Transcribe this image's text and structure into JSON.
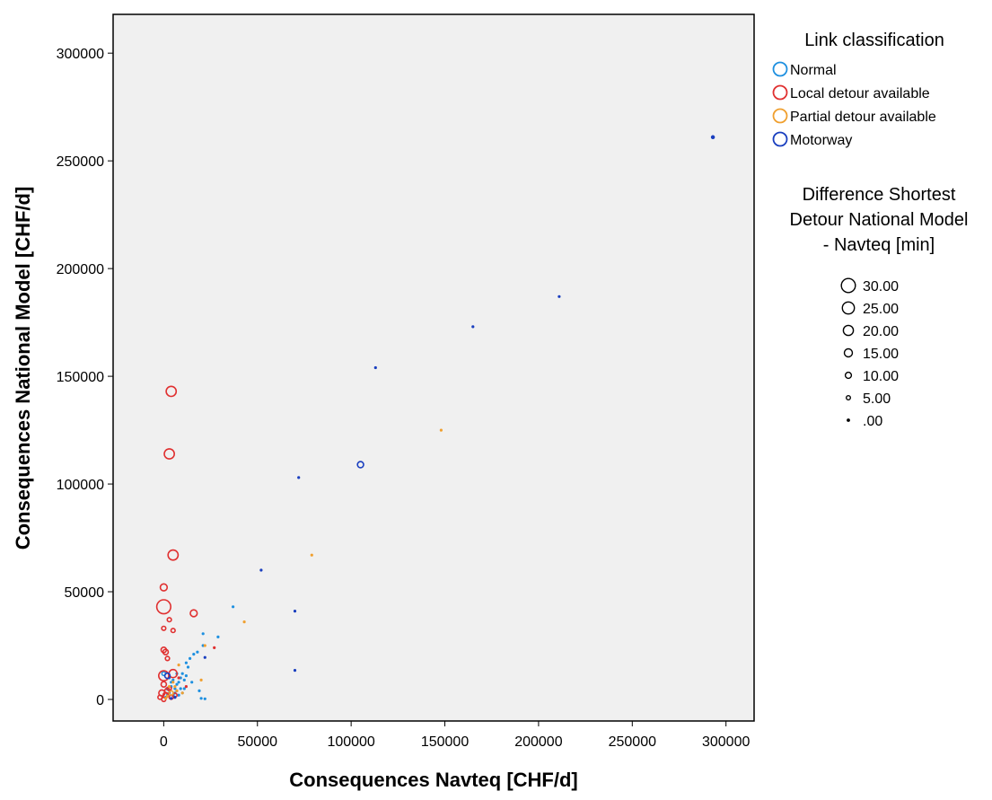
{
  "chart_data": {
    "type": "scatter",
    "xlabel": "Consequences Navteq [CHF/d]",
    "ylabel": "Consequences National Model [CHF/d]",
    "xlim": [
      -27000,
      315000
    ],
    "ylim": [
      -10000,
      318000
    ],
    "x_ticks": [
      "0",
      "50000",
      "100000",
      "150000",
      "200000",
      "250000",
      "300000"
    ],
    "y_ticks": [
      "0",
      "50000",
      "100000",
      "150000",
      "200000",
      "250000",
      "300000"
    ],
    "x_tick_values": [
      0,
      50000,
      100000,
      150000,
      200000,
      250000,
      300000
    ],
    "y_tick_values": [
      0,
      50000,
      100000,
      150000,
      200000,
      250000,
      300000
    ],
    "grid": false,
    "plot_background": "#f0f0f0",
    "legend_position": "right",
    "color_legend_title": "Link classification",
    "size_legend_title": [
      "Difference Shortest",
      "Detour National Model",
      "- Navteq [min]"
    ],
    "size_legend_entries": [
      {
        "label": "30.00",
        "value": 30
      },
      {
        "label": "25.00",
        "value": 25
      },
      {
        "label": "20.00",
        "value": 20
      },
      {
        "label": "15.00",
        "value": 15
      },
      {
        "label": "10.00",
        "value": 10
      },
      {
        "label": "5.00",
        "value": 5
      },
      {
        "label": ".00",
        "value": 0
      }
    ],
    "series": [
      {
        "name": "Normal",
        "color": "#1e90e0",
        "points": [
          [
            37000,
            43000,
            0
          ],
          [
            21000,
            30500,
            0
          ],
          [
            29000,
            29000,
            0
          ],
          [
            21000,
            25000,
            0
          ],
          [
            18000,
            22000,
            0
          ],
          [
            14000,
            19000,
            0
          ],
          [
            16000,
            21000,
            0
          ],
          [
            12000,
            17000,
            0
          ],
          [
            13000,
            15000,
            0
          ],
          [
            10000,
            12000,
            0
          ],
          [
            9000,
            10000,
            0
          ],
          [
            11000,
            9000,
            0
          ],
          [
            12000,
            11000,
            0
          ],
          [
            8000,
            8000,
            0
          ],
          [
            7000,
            7000,
            0
          ],
          [
            6000,
            5000,
            0
          ],
          [
            5000,
            9000,
            0
          ],
          [
            4000,
            6000,
            0
          ],
          [
            9000,
            5000,
            0
          ],
          [
            10000,
            3000,
            0
          ],
          [
            8000,
            2000,
            0
          ],
          [
            6000,
            1000,
            0
          ],
          [
            3000,
            3000,
            0
          ],
          [
            2000,
            2000,
            0
          ],
          [
            1000,
            1000,
            0
          ],
          [
            19000,
            4000,
            0
          ],
          [
            20000,
            500,
            0
          ],
          [
            22000,
            300,
            0
          ],
          [
            15000,
            8000,
            0
          ],
          [
            7000,
            12000,
            0
          ],
          [
            0,
            12000,
            4
          ],
          [
            2000,
            5000,
            2
          ],
          [
            5000,
            2000,
            1
          ],
          [
            4000,
            8000,
            0
          ],
          [
            6000,
            3000,
            0
          ],
          [
            7000,
            4000,
            0
          ],
          [
            11000,
            5000,
            0
          ],
          [
            3000,
            10000,
            0
          ]
        ]
      },
      {
        "name": "Local detour available",
        "color": "#e03030",
        "points": [
          [
            4000,
            143000,
            20
          ],
          [
            3000,
            114000,
            20
          ],
          [
            5000,
            67000,
            20
          ],
          [
            0,
            43000,
            30
          ],
          [
            0,
            52000,
            12
          ],
          [
            16000,
            40000,
            12
          ],
          [
            3000,
            37000,
            5
          ],
          [
            0,
            33000,
            5
          ],
          [
            5000,
            32000,
            5
          ],
          [
            0,
            23000,
            8
          ],
          [
            1000,
            22000,
            8
          ],
          [
            2000,
            19000,
            5
          ],
          [
            0,
            11000,
            20
          ],
          [
            5000,
            12000,
            15
          ],
          [
            0,
            7000,
            8
          ],
          [
            -1000,
            3000,
            10
          ],
          [
            1000,
            2000,
            8
          ],
          [
            2000,
            4000,
            8
          ],
          [
            3000,
            5000,
            5
          ],
          [
            4000,
            1000,
            5
          ],
          [
            -2000,
            1000,
            5
          ],
          [
            8000,
            10000,
            0
          ],
          [
            12000,
            6000,
            0
          ],
          [
            27000,
            24000,
            0
          ],
          [
            6000,
            2000,
            5
          ],
          [
            0,
            0,
            5
          ]
        ]
      },
      {
        "name": "Partial detour available",
        "color": "#f0a030",
        "points": [
          [
            148000,
            125000,
            0
          ],
          [
            79000,
            67000,
            0
          ],
          [
            43000,
            36000,
            0
          ],
          [
            22000,
            25000,
            0
          ],
          [
            20000,
            9000,
            0
          ],
          [
            8000,
            16000,
            0
          ],
          [
            5000,
            8000,
            0
          ],
          [
            3000,
            6000,
            0
          ],
          [
            7000,
            4000,
            0
          ],
          [
            6000,
            6000,
            0
          ],
          [
            4000,
            3000,
            5
          ],
          [
            10000,
            3000,
            0
          ],
          [
            2000,
            1500,
            0
          ],
          [
            1000,
            500,
            0
          ]
        ]
      },
      {
        "name": "Motorway",
        "color": "#1a3fbf",
        "points": [
          [
            293000,
            261000,
            3
          ],
          [
            211000,
            187000,
            0
          ],
          [
            165000,
            173000,
            0
          ],
          [
            113000,
            154000,
            0
          ],
          [
            105000,
            109000,
            10
          ],
          [
            72000,
            103000,
            0
          ],
          [
            52000,
            60000,
            0
          ],
          [
            70000,
            41000,
            0
          ],
          [
            70000,
            13500,
            0
          ],
          [
            22000,
            19500,
            0
          ],
          [
            2000,
            11000,
            8
          ],
          [
            6000,
            1000,
            0
          ],
          [
            4000,
            500,
            0
          ]
        ]
      }
    ]
  }
}
